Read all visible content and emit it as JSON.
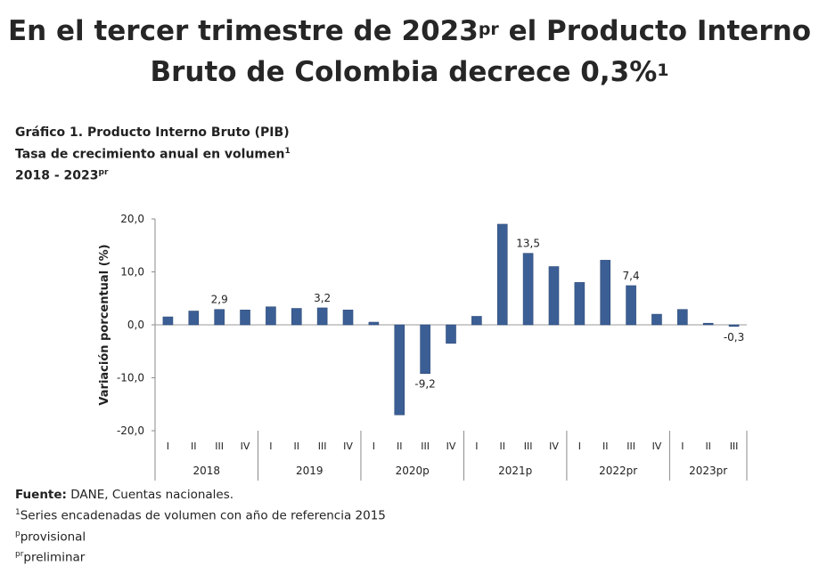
{
  "headline": {
    "line1_part1": "En el tercer trimestre de 2023",
    "line1_sup": "pr",
    "line1_part2": " el Producto Interno",
    "line2": "Bruto de Colombia decrece 0,3%",
    "line2_sup": "1"
  },
  "chart_title": {
    "line1": "Gráfico 1. Producto Interno Bruto (PIB)",
    "line2": "Tasa de crecimiento anual en volumen",
    "line2_sup": "1",
    "line3": "2018 - 2023",
    "line3_sup": "pr"
  },
  "chart_data": {
    "type": "bar",
    "ylabel": "Variación porcentual (%)",
    "ylim": [
      -20,
      20
    ],
    "yticks": [
      20,
      10,
      0,
      -10,
      -20
    ],
    "ytick_labels": [
      "20,0",
      "10,0",
      "0,0",
      "-10,0",
      "-20,0"
    ],
    "grid": false,
    "bar_color": "#3b5f95",
    "years": [
      {
        "label": "2018",
        "quarters": [
          "I",
          "II",
          "III",
          "IV"
        ]
      },
      {
        "label": "2019",
        "quarters": [
          "I",
          "II",
          "III",
          "IV"
        ]
      },
      {
        "label": "2020p",
        "quarters": [
          "I",
          "II",
          "III",
          "IV"
        ]
      },
      {
        "label": "2021p",
        "quarters": [
          "I",
          "II",
          "III",
          "IV"
        ]
      },
      {
        "label": "2022pr",
        "quarters": [
          "I",
          "II",
          "III",
          "IV"
        ]
      },
      {
        "label": "2023pr",
        "quarters": [
          "I",
          "II",
          "III"
        ]
      }
    ],
    "values": [
      1.5,
      2.6,
      2.9,
      2.8,
      3.4,
      3.1,
      3.2,
      2.8,
      0.5,
      -17.0,
      -9.2,
      -3.5,
      1.6,
      19.0,
      13.5,
      11.0,
      8.0,
      12.2,
      7.4,
      2.0,
      2.9,
      0.3,
      -0.3
    ],
    "data_labels": [
      {
        "index": 2,
        "text": "2,9"
      },
      {
        "index": 6,
        "text": "3,2"
      },
      {
        "index": 10,
        "text": "-9,2"
      },
      {
        "index": 14,
        "text": "13,5"
      },
      {
        "index": 18,
        "text": "7,4"
      },
      {
        "index": 22,
        "text": "-0,3"
      }
    ]
  },
  "footnotes": {
    "source_label": "Fuente:",
    "source_text": " DANE, Cuentas nacionales.",
    "note1_sup": "1",
    "note1_text": "Series encadenadas de volumen con año de referencia 2015",
    "note2_sup": "p",
    "note2_text": "provisional",
    "note3_sup": "pr",
    "note3_text": "preliminar"
  }
}
